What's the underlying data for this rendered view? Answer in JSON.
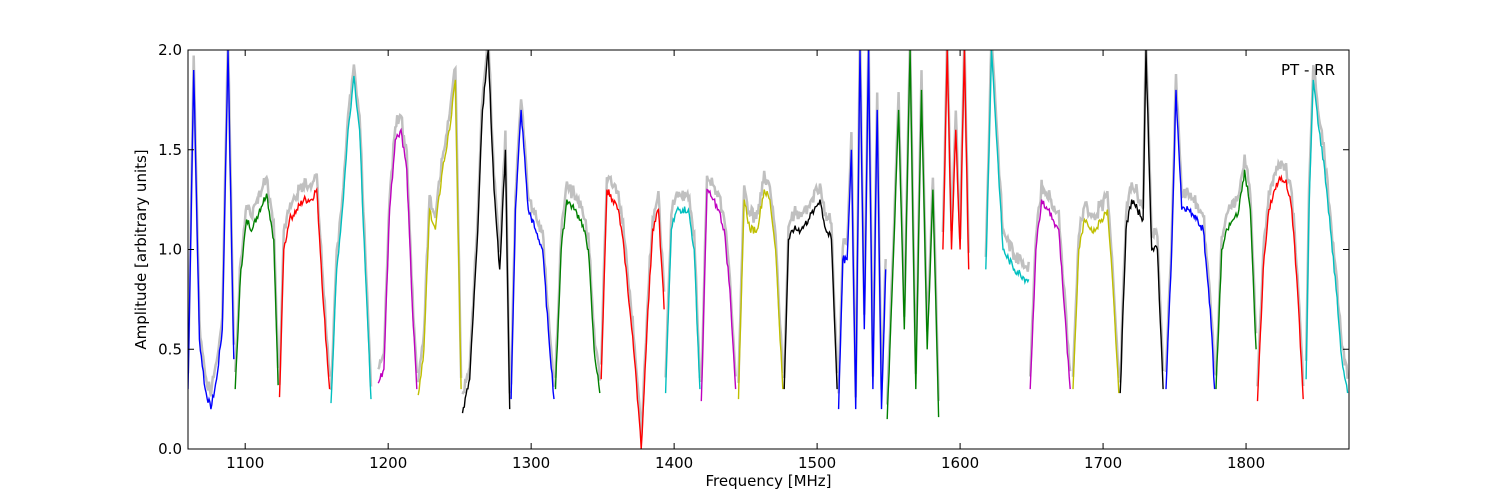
{
  "chart_data": {
    "type": "line",
    "title": "",
    "annotation": "PT - RR",
    "xlabel": "Frequency [MHz]",
    "ylabel": "Amplitude [arbitrary units]",
    "xlim": [
      1060,
      1872
    ],
    "ylim": [
      0.0,
      2.0
    ],
    "x_ticks": [
      1100,
      1200,
      1300,
      1400,
      1500,
      1600,
      1700,
      1800
    ],
    "x_tick_labels": [
      "1100",
      "1200",
      "1300",
      "1400",
      "1500",
      "1600",
      "1700",
      "1800"
    ],
    "y_ticks": [
      0.0,
      0.5,
      1.0,
      1.5,
      2.0
    ],
    "y_tick_labels": [
      "0.0",
      "0.5",
      "1.0",
      "1.5",
      "2.0"
    ],
    "grid": false,
    "background_color": "#c0c0c0",
    "segment_colors": {
      "blue": "#0000ff",
      "green": "#008000",
      "red": "#ff0000",
      "cyan": "#00bfbf",
      "magenta": "#bf00bf",
      "yellow": "#bfbf00",
      "black": "#000000"
    },
    "series": [
      {
        "color": "blue",
        "x": [
          1060,
          1064,
          1068,
          1072,
          1076,
          1080,
          1084,
          1088,
          1092
        ],
        "y": [
          0.3,
          1.9,
          0.55,
          0.3,
          0.2,
          0.35,
          0.6,
          2.0,
          0.45
        ]
      },
      {
        "color": "green",
        "x": [
          1093,
          1097,
          1101,
          1105,
          1110,
          1115,
          1120,
          1123
        ],
        "y": [
          0.3,
          0.9,
          1.15,
          1.1,
          1.2,
          1.28,
          1.05,
          0.32
        ]
      },
      {
        "color": "red",
        "x": [
          1124,
          1127,
          1131,
          1136,
          1141,
          1146,
          1150,
          1155,
          1159
        ],
        "y": [
          0.26,
          1.0,
          1.15,
          1.2,
          1.25,
          1.25,
          1.3,
          0.7,
          0.3
        ]
      },
      {
        "color": "cyan",
        "x": [
          1160,
          1164,
          1168,
          1172,
          1176,
          1180,
          1184,
          1188
        ],
        "y": [
          0.23,
          0.9,
          1.2,
          1.6,
          1.87,
          1.6,
          0.9,
          0.25
        ]
      },
      {
        "color": "magenta",
        "x": [
          1193,
          1197,
          1201,
          1205,
          1209,
          1213,
          1217,
          1220
        ],
        "y": [
          0.33,
          0.4,
          1.2,
          1.55,
          1.6,
          1.4,
          0.7,
          0.3
        ]
      },
      {
        "color": "yellow",
        "x": [
          1221,
          1225,
          1229,
          1233,
          1238,
          1243,
          1247,
          1251
        ],
        "y": [
          0.27,
          0.5,
          1.2,
          1.1,
          1.4,
          1.6,
          1.85,
          0.3
        ]
      },
      {
        "color": "black",
        "x": [
          1252,
          1257,
          1262,
          1266,
          1270,
          1274,
          1278,
          1282,
          1285
        ],
        "y": [
          0.18,
          0.35,
          1.0,
          1.7,
          2.0,
          1.3,
          0.9,
          1.5,
          0.2
        ]
      },
      {
        "color": "blue",
        "x": [
          1286,
          1289,
          1293,
          1298,
          1303,
          1308,
          1312,
          1316
        ],
        "y": [
          0.25,
          1.2,
          1.7,
          1.2,
          1.1,
          1.0,
          0.6,
          0.25
        ]
      },
      {
        "color": "green",
        "x": [
          1317,
          1321,
          1325,
          1330,
          1335,
          1340,
          1344,
          1348
        ],
        "y": [
          0.3,
          1.0,
          1.25,
          1.2,
          1.15,
          1.0,
          0.5,
          0.28
        ]
      },
      {
        "color": "red",
        "x": [
          1349,
          1353,
          1357,
          1361,
          1365,
          1369,
          1373,
          1377,
          1381,
          1385,
          1389,
          1393
        ],
        "y": [
          0.35,
          1.3,
          1.25,
          1.2,
          1.0,
          0.7,
          0.4,
          0.0,
          0.6,
          1.1,
          1.2,
          0.7
        ]
      },
      {
        "color": "cyan",
        "x": [
          1394,
          1398,
          1402,
          1406,
          1410,
          1414,
          1418
        ],
        "y": [
          0.28,
          1.1,
          1.2,
          1.2,
          1.2,
          1.0,
          0.3
        ]
      },
      {
        "color": "magenta",
        "x": [
          1419,
          1423,
          1427,
          1431,
          1435,
          1439,
          1443
        ],
        "y": [
          0.24,
          1.3,
          1.25,
          1.2,
          1.1,
          0.8,
          0.3
        ]
      },
      {
        "color": "yellow",
        "x": [
          1445,
          1449,
          1453,
          1458,
          1463,
          1467,
          1471,
          1476
        ],
        "y": [
          0.25,
          1.25,
          1.1,
          1.1,
          1.3,
          1.25,
          1.0,
          0.3
        ]
      },
      {
        "color": "black",
        "x": [
          1477,
          1480,
          1484,
          1489,
          1494,
          1498,
          1502,
          1506,
          1510,
          1514
        ],
        "y": [
          0.3,
          1.05,
          1.1,
          1.1,
          1.15,
          1.2,
          1.25,
          1.1,
          1.05,
          0.3
        ]
      },
      {
        "color": "blue",
        "x": [
          1515,
          1518,
          1521,
          1524,
          1527,
          1530,
          1533,
          1536,
          1539,
          1542,
          1545,
          1548
        ],
        "y": [
          0.2,
          0.95,
          0.95,
          1.5,
          0.2,
          2.0,
          0.6,
          2.0,
          0.3,
          1.7,
          0.2,
          0.9
        ]
      },
      {
        "color": "green",
        "x": [
          1549,
          1553,
          1557,
          1561,
          1565,
          1569,
          1573,
          1577,
          1581,
          1585
        ],
        "y": [
          0.15,
          0.9,
          1.7,
          0.6,
          2.0,
          0.3,
          1.8,
          0.5,
          1.3,
          0.16
        ]
      },
      {
        "color": "red",
        "x": [
          1588,
          1591,
          1594,
          1597,
          1600,
          1603,
          1606
        ],
        "y": [
          1.0,
          2.0,
          1.0,
          1.6,
          1.0,
          2.0,
          0.9
        ]
      },
      {
        "color": "cyan",
        "x": [
          1618,
          1622,
          1626,
          1630,
          1634,
          1638,
          1642,
          1646,
          1648
        ],
        "y": [
          0.9,
          2.0,
          1.5,
          1.0,
          0.95,
          0.9,
          0.88,
          0.85,
          0.85
        ]
      },
      {
        "color": "magenta",
        "x": [
          1649,
          1653,
          1657,
          1661,
          1665,
          1669,
          1673,
          1677
        ],
        "y": [
          0.3,
          1.0,
          1.25,
          1.2,
          1.15,
          1.1,
          0.7,
          0.3
        ]
      },
      {
        "color": "yellow",
        "x": [
          1679,
          1683,
          1687,
          1691,
          1695,
          1699,
          1703,
          1707,
          1711
        ],
        "y": [
          0.3,
          1.0,
          1.15,
          1.1,
          1.1,
          1.15,
          1.2,
          0.8,
          0.28
        ]
      },
      {
        "color": "black",
        "x": [
          1712,
          1716,
          1720,
          1724,
          1728,
          1730,
          1734,
          1738,
          1742
        ],
        "y": [
          0.28,
          1.1,
          1.25,
          1.2,
          1.15,
          2.0,
          1.0,
          1.0,
          0.3
        ]
      },
      {
        "color": "blue",
        "x": [
          1744,
          1748,
          1751,
          1755,
          1760,
          1765,
          1770,
          1775,
          1778
        ],
        "y": [
          0.3,
          1.0,
          1.8,
          1.2,
          1.2,
          1.15,
          1.1,
          0.7,
          0.3
        ]
      },
      {
        "color": "green",
        "x": [
          1779,
          1783,
          1787,
          1791,
          1795,
          1799,
          1803,
          1807
        ],
        "y": [
          0.3,
          1.0,
          1.1,
          1.15,
          1.2,
          1.4,
          1.2,
          0.5
        ]
      },
      {
        "color": "red",
        "x": [
          1808,
          1812,
          1816,
          1820,
          1824,
          1828,
          1832,
          1836,
          1840
        ],
        "y": [
          0.24,
          0.9,
          1.2,
          1.3,
          1.35,
          1.35,
          1.2,
          0.8,
          0.25
        ]
      },
      {
        "color": "cyan",
        "x": [
          1842,
          1844,
          1847,
          1851,
          1855,
          1859,
          1863,
          1867,
          1871
        ],
        "y": [
          0.35,
          1.2,
          1.85,
          1.6,
          1.4,
          1.1,
          0.8,
          0.45,
          0.28
        ]
      }
    ]
  }
}
